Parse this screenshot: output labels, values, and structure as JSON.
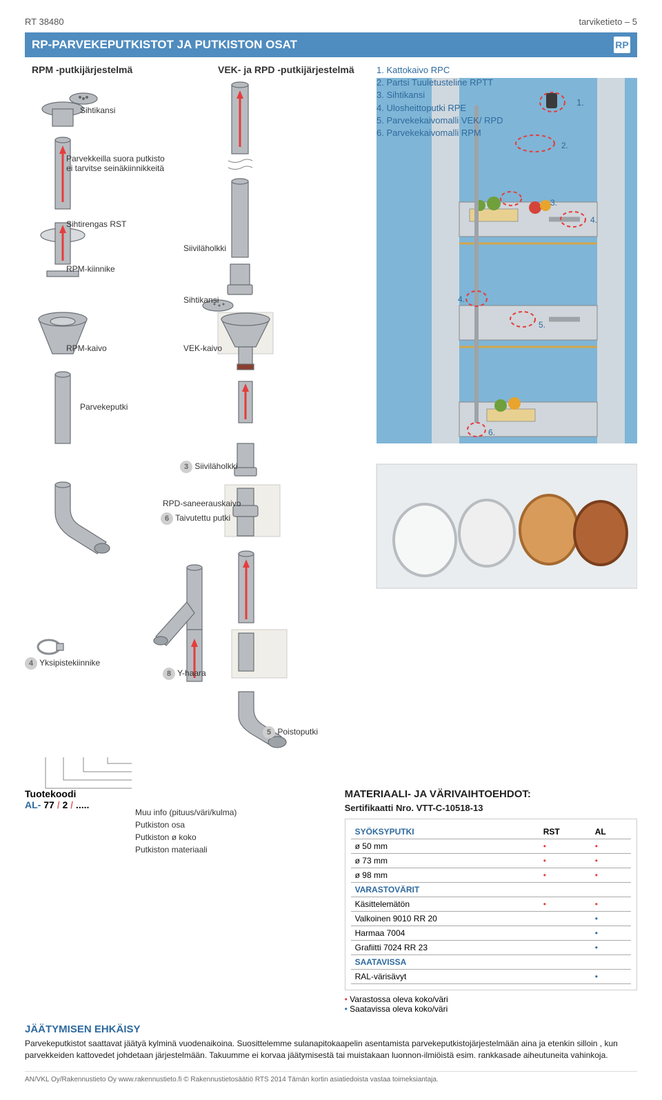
{
  "header": {
    "doc_id": "RT 38480",
    "page_label": "tarviketieto – 5",
    "title": "RP-PARVEKEPUTKISTOT JA PUTKISTON OSAT",
    "logo_text": "RP"
  },
  "cols": {
    "left_title": "RPM -putkijärjestelmä",
    "mid_title": "VEK- ja RPD -putkijärjestelmä"
  },
  "legend": {
    "items": [
      "1. Kattokaivo  RPC",
      "2. Partsi Tuuletusteline RPTT",
      "3. Sihtikansi",
      "4. Ulosheittoputki RPE",
      "5. Parvekekaivomalli  VEK/ RPD",
      "6. Parvekekaivomalli RPM"
    ]
  },
  "labels": {
    "sihtikansi": "Sihtikansi",
    "parvekkeilla": "Parvekkeilla suora putkisto\nei tarvitse seinäkiinnikkeitä",
    "sihtirengas": "Sihtirengas RST",
    "siivilaholkki": "Siiviläholkki",
    "rpm_kiinnike": "RPM-kiinnike",
    "rpm_kaivo": "RPM-kaivo",
    "vek_kaivo": "VEK-kaivo",
    "parvekeputki": "Parvekeputki",
    "siivilaholkki2": "Siiviläholkki",
    "rpd_saneer": "RPD-saneerauskaivo",
    "taivutettu": "Taivutettu putki",
    "yksi": "Yksipistekiinnike",
    "yhaara": "Y-haara",
    "poisto": "Poistoputki",
    "tuotekoodi": "Tuotekoodi",
    "pcode": "AL-  77 /   2 / .....",
    "muu": "Muu info (pituus/väri/kulma)",
    "putkiston_osa": "Putkiston osa",
    "putki_koko": "Putkiston ø koko",
    "putki_mat": "Putkiston materiaali"
  },
  "balcony": {
    "callouts": [
      "1.",
      "2.",
      "3.",
      "4.",
      "4.",
      "5.",
      "6."
    ]
  },
  "materials": {
    "heading": "MATERIAALI- JA VÄRIVAIHTOEHDOT:",
    "cert": "Sertifikaatti Nro. VTT-C-10518-13",
    "col_head_1": "SYÖKSYPUTKI",
    "col_rst": "RST",
    "col_al": "AL",
    "rows": [
      {
        "label": "ø 50 mm",
        "rst": "•",
        "al": "•",
        "blue": false
      },
      {
        "label": "ø 73 mm",
        "rst": "•",
        "al": "•",
        "blue": false
      },
      {
        "label": "ø 98 mm",
        "rst": "•",
        "al": "•",
        "blue": false
      },
      {
        "label": "VARASTOVÄRIT",
        "rst": "",
        "al": "",
        "blue": true
      },
      {
        "label": "Käsittelemätön",
        "rst": "•",
        "al": "•",
        "blue": false
      },
      {
        "label": "Valkoinen 9010 RR 20",
        "rst": "",
        "al": "•",
        "blue": false
      },
      {
        "label": "Harmaa      7004",
        "rst": "",
        "al": "•",
        "blue": false
      },
      {
        "label": "Grafiitti     7024 RR 23",
        "rst": "",
        "al": "•",
        "blue": false
      },
      {
        "label": "SAATAVISSA",
        "rst": "",
        "al": "",
        "blue": true
      },
      {
        "label": "RAL-värisävyt",
        "rst": "",
        "al": "•",
        "blue": false
      }
    ],
    "legend_red": "Varastossa oleva koko/väri",
    "legend_blue": "Saatavissa oleva koko/väri"
  },
  "freeze": {
    "heading": "JÄÄTYMISEN EHKÄISY",
    "body": "Parvekeputkistot saattavat jäätyä kylminä vuodenaikoina. Suosittelemme sulanapitokaapelin asentamista parvekeputkistojärjestelmään aina ja etenkin silloin , kun parvekkeiden kattovedet johdetaan järjestelmään. Takuumme ei korvaa jäätymisestä tai muistakaan luonnon-ilmiöistä esim. rankkasade aiheutuneita vahinkoja."
  },
  "footer": "AN/VKL Oy/Rakennustieto Oy   www.rakennustieto.fi   © Rakennustietosäätiö RTS 2014  Tämän kortin asiatiedoista vastaa toimeksiantaja.",
  "colors": {
    "band": "#4f8cbf",
    "legendText": "#2e6a9e",
    "red": "#e63c3c"
  }
}
